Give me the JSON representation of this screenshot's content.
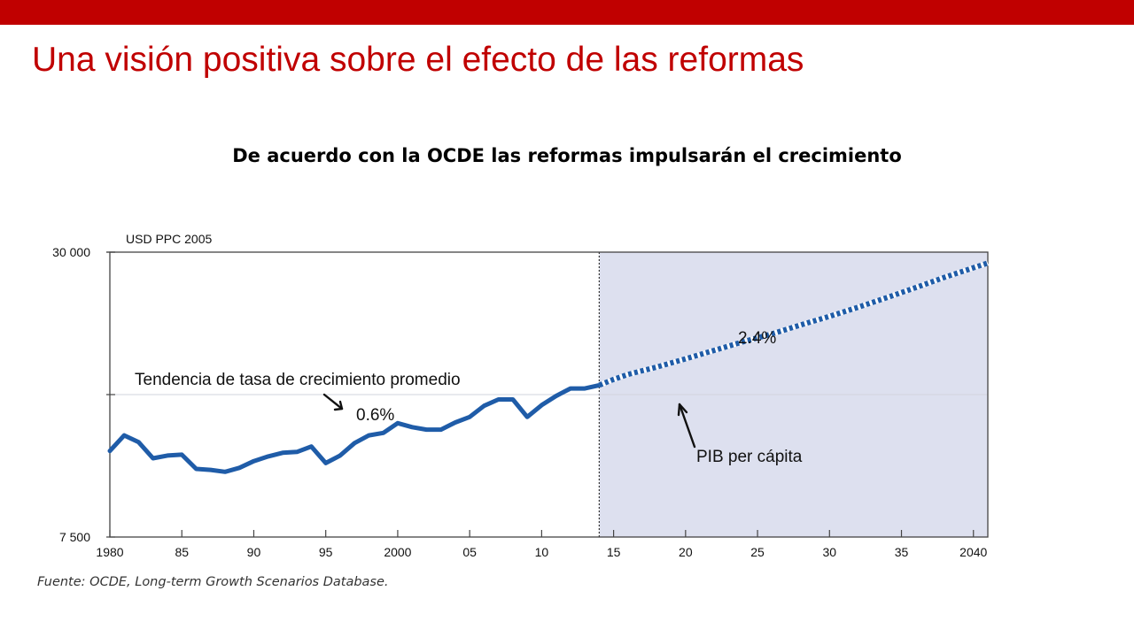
{
  "slide": {
    "title": "Una visión positiva sobre el efecto de las reformas",
    "subtitle": "De acuerdo con la OCDE las reformas impulsarán el crecimiento",
    "source": "Fuente: OCDE, Long-term Growth Scenarios Database.",
    "accent_color": "#c00000"
  },
  "chart_data": {
    "type": "line",
    "title": "",
    "ylabel": "USD PPC 2005",
    "xlabel": "",
    "x_tick_labels": [
      "1980",
      "85",
      "90",
      "95",
      "2000",
      "05",
      "10",
      "15",
      "20",
      "25",
      "30",
      "35",
      "2040"
    ],
    "y_tick_labels": [
      "30 000",
      "7 500"
    ],
    "y_scale": "log",
    "xlim": [
      1980,
      2041
    ],
    "ylim": [
      7500,
      30000
    ],
    "projection_start": 2014,
    "projection_shading_color": "#dde0ef",
    "series": [
      {
        "name": "PIB per cápita",
        "segment": "historical",
        "style": "solid",
        "color": "#1f5ca8",
        "points": [
          [
            1980,
            11400
          ],
          [
            1981,
            12300
          ],
          [
            1982,
            11900
          ],
          [
            1983,
            11000
          ],
          [
            1984,
            11150
          ],
          [
            1985,
            11200
          ],
          [
            1986,
            10450
          ],
          [
            1987,
            10400
          ],
          [
            1988,
            10300
          ],
          [
            1989,
            10500
          ],
          [
            1990,
            10850
          ],
          [
            1991,
            11100
          ],
          [
            1992,
            11300
          ],
          [
            1993,
            11350
          ],
          [
            1994,
            11650
          ],
          [
            1995,
            10750
          ],
          [
            1996,
            11150
          ],
          [
            1997,
            11850
          ],
          [
            1998,
            12300
          ],
          [
            1999,
            12450
          ],
          [
            2000,
            13050
          ],
          [
            2001,
            12800
          ],
          [
            2002,
            12650
          ],
          [
            2003,
            12650
          ],
          [
            2004,
            13100
          ],
          [
            2005,
            13450
          ],
          [
            2006,
            14200
          ],
          [
            2007,
            14650
          ],
          [
            2008,
            14650
          ],
          [
            2009,
            13450
          ],
          [
            2010,
            14250
          ],
          [
            2011,
            14900
          ],
          [
            2012,
            15450
          ],
          [
            2013,
            15450
          ],
          [
            2014,
            15700
          ]
        ]
      },
      {
        "name": "PIB per cápita",
        "segment": "projection",
        "style": "dotted",
        "color": "#1f5ca8",
        "points": [
          [
            2014,
            15700
          ],
          [
            2015,
            16150
          ],
          [
            2016,
            16550
          ],
          [
            2017,
            16850
          ],
          [
            2018,
            17150
          ],
          [
            2019,
            17500
          ],
          [
            2020,
            17850
          ],
          [
            2022,
            18600
          ],
          [
            2024,
            19400
          ],
          [
            2026,
            20150
          ],
          [
            2028,
            21050
          ],
          [
            2030,
            21950
          ],
          [
            2032,
            22950
          ],
          [
            2034,
            24050
          ],
          [
            2036,
            25250
          ],
          [
            2038,
            26550
          ],
          [
            2041,
            28450
          ]
        ]
      }
    ],
    "annotations": [
      {
        "text": "Tendencia de tasa de crecimiento promedio"
      },
      {
        "text": "0.6%"
      },
      {
        "text": "2.4%"
      },
      {
        "text": "PIB per cápita"
      }
    ]
  }
}
